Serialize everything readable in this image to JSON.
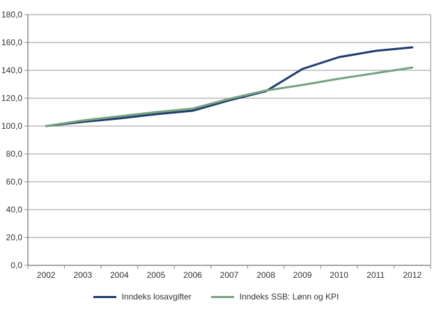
{
  "chart_data": {
    "type": "line",
    "title": "",
    "xlabel": "",
    "ylabel": "",
    "x_categories": [
      "2002",
      "2003",
      "2004",
      "2005",
      "2006",
      "2007",
      "2008",
      "2009",
      "2010",
      "2011",
      "2012"
    ],
    "ylim": [
      0,
      180
    ],
    "y_tick_values": [
      0,
      20,
      40,
      60,
      80,
      100,
      120,
      140,
      160,
      180
    ],
    "y_tick_labels": [
      "0,0",
      "20,0",
      "40,0",
      "60,0",
      "80,0",
      "100,0",
      "120,0",
      "140,0",
      "160,0",
      "180,0"
    ],
    "grid": true,
    "legend_position": "bottom",
    "series": [
      {
        "name": "Inndeks losavgifter",
        "color": "#1E3C6E",
        "values": [
          100,
          103,
          105.5,
          108.5,
          111,
          118.5,
          125,
          141,
          149.5,
          154,
          156.5
        ]
      },
      {
        "name": "Inndeks SSB: Lønn og KPI",
        "color": "#76A380",
        "values": [
          100,
          104,
          107,
          110,
          112.5,
          119.5,
          125.5,
          129.5,
          134,
          138,
          142
        ]
      }
    ]
  },
  "colors": {
    "axis": "#8a8a8a",
    "gridline": "#9a9a9a",
    "text": "#333333",
    "background": "#ffffff"
  }
}
